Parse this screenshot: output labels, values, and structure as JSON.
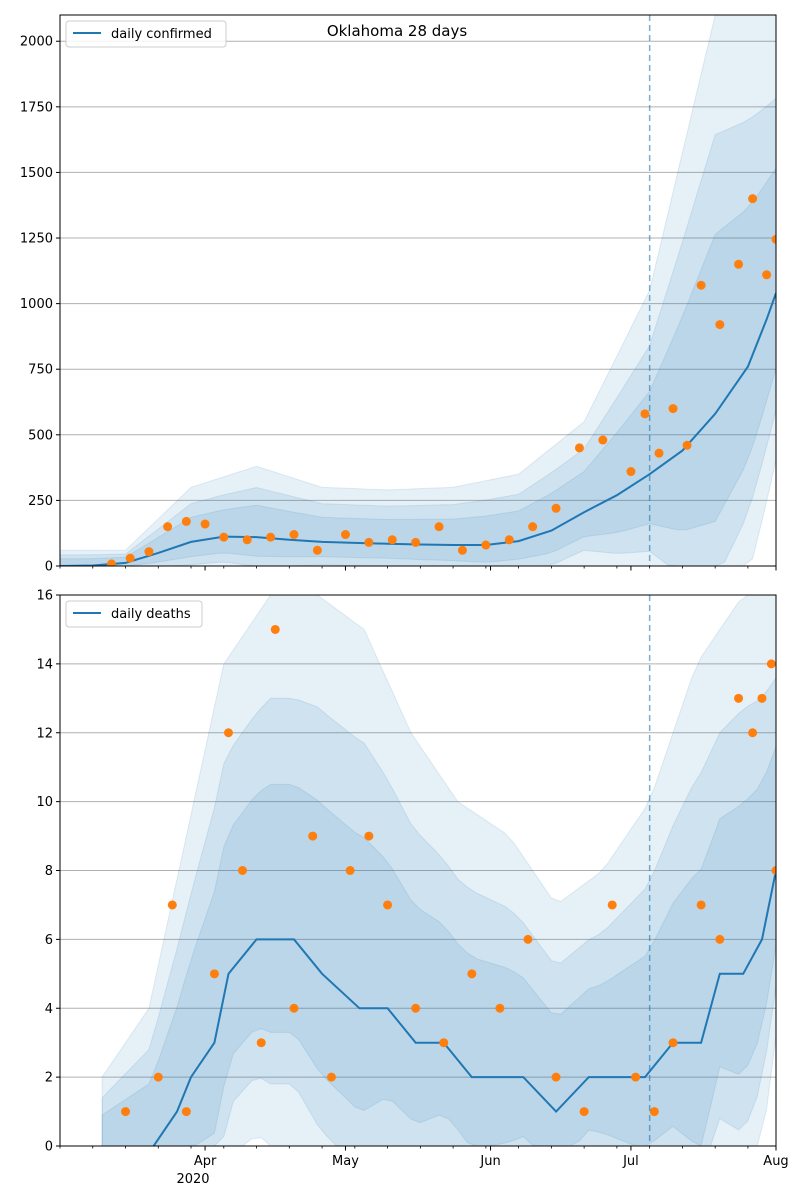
{
  "chart_data": [
    {
      "type": "line",
      "title": "Oklahoma 28 days",
      "xlabel": "",
      "ylabel": "",
      "legend": {
        "label": "daily confirmed",
        "placement": "top-left"
      },
      "xlim": [
        "2020-03-01",
        "2020-08-01"
      ],
      "ylim": [
        0,
        2100
      ],
      "yticks": [
        0,
        250,
        500,
        750,
        1000,
        1250,
        1500,
        1750,
        2000
      ],
      "grid": "horizontal",
      "forecast_start": "2020-07-05",
      "colors": {
        "line": "#1f77b4",
        "observed": "#ff7f0e",
        "band": "#1f77b4"
      },
      "series": [
        {
          "name": "daily confirmed",
          "role": "model fit and 28-day forecast (line)",
          "x": [
            "2020-03-01",
            "2020-03-08",
            "2020-03-15",
            "2020-03-22",
            "2020-03-29",
            "2020-04-05",
            "2020-04-12",
            "2020-04-19",
            "2020-04-26",
            "2020-05-03",
            "2020-05-10",
            "2020-05-17",
            "2020-05-24",
            "2020-05-31",
            "2020-06-07",
            "2020-06-14",
            "2020-06-21",
            "2020-06-28",
            "2020-07-05",
            "2020-07-12",
            "2020-07-19",
            "2020-07-26",
            "2020-07-30",
            "2020-08-01"
          ],
          "y": [
            0,
            2,
            12,
            50,
            92,
            112,
            110,
            100,
            92,
            88,
            85,
            82,
            80,
            80,
            95,
            135,
            205,
            270,
            350,
            440,
            580,
            760,
            940,
            1040
          ]
        },
        {
          "name": "",
          "role": "observed daily values (dots)",
          "x": [
            "2020-03-12",
            "2020-03-16",
            "2020-03-20",
            "2020-03-24",
            "2020-03-28",
            "2020-04-01",
            "2020-04-05",
            "2020-04-10",
            "2020-04-15",
            "2020-04-20",
            "2020-04-25",
            "2020-05-01",
            "2020-05-06",
            "2020-05-11",
            "2020-05-16",
            "2020-05-21",
            "2020-05-26",
            "2020-05-31",
            "2020-06-05",
            "2020-06-10",
            "2020-06-15",
            "2020-06-20",
            "2020-06-25",
            "2020-07-01",
            "2020-07-04",
            "2020-07-07",
            "2020-07-10",
            "2020-07-13",
            "2020-07-16",
            "2020-07-20",
            "2020-07-24",
            "2020-07-27",
            "2020-07-30",
            "2020-08-01"
          ],
          "y": [
            8,
            30,
            55,
            150,
            170,
            160,
            110,
            100,
            110,
            120,
            60,
            120,
            90,
            100,
            90,
            150,
            60,
            80,
            100,
            150,
            220,
            450,
            480,
            360,
            580,
            430,
            600,
            460,
            1070,
            920,
            1150,
            1400,
            1110,
            1245
          ]
        },
        {
          "name": "",
          "role": "outer uncertainty band (upper edge)",
          "x": [
            "2020-03-15",
            "2020-03-29",
            "2020-04-12",
            "2020-04-26",
            "2020-05-10",
            "2020-05-24",
            "2020-06-07",
            "2020-06-21",
            "2020-07-05",
            "2020-07-19",
            "2020-08-01"
          ],
          "y": [
            60,
            300,
            380,
            300,
            290,
            300,
            350,
            550,
            1050,
            2100,
            2100
          ]
        }
      ]
    },
    {
      "type": "line",
      "title": "",
      "xlabel": "",
      "ylabel": "",
      "legend": {
        "label": "daily deaths",
        "placement": "top-left"
      },
      "xlim": [
        "2020-03-01",
        "2020-08-01"
      ],
      "ylim": [
        0,
        16
      ],
      "yticks": [
        0,
        2,
        4,
        6,
        8,
        10,
        12,
        14,
        16
      ],
      "xtick_labels": [
        "Apr",
        "May",
        "Jun",
        "Jul",
        "Aug"
      ],
      "xtick_dates": [
        "2020-04-01",
        "2020-05-01",
        "2020-06-01",
        "2020-07-01",
        "2020-08-01"
      ],
      "x_year_label": "2020",
      "grid": "horizontal",
      "forecast_start": "2020-07-05",
      "colors": {
        "line": "#1f77b4",
        "observed": "#ff7f0e",
        "band": "#1f77b4"
      },
      "series": [
        {
          "name": "daily deaths",
          "role": "model fit and 28-day forecast (line)",
          "x": [
            "2020-03-21",
            "2020-03-26",
            "2020-03-29",
            "2020-04-03",
            "2020-04-06",
            "2020-04-12",
            "2020-04-20",
            "2020-04-26",
            "2020-05-04",
            "2020-05-10",
            "2020-05-16",
            "2020-05-22",
            "2020-05-28",
            "2020-06-04",
            "2020-06-08",
            "2020-06-15",
            "2020-06-22",
            "2020-07-04",
            "2020-07-10",
            "2020-07-16",
            "2020-07-20",
            "2020-07-25",
            "2020-07-29",
            "2020-08-01"
          ],
          "y": [
            0,
            1,
            2,
            3,
            5,
            6,
            6,
            5,
            4,
            4,
            3,
            3,
            2,
            2,
            2,
            1,
            2,
            2,
            3,
            3,
            5,
            5,
            6,
            8
          ]
        },
        {
          "name": "",
          "role": "observed daily values (dots)",
          "x": [
            "2020-03-15",
            "2020-03-22",
            "2020-03-25",
            "2020-03-28",
            "2020-04-03",
            "2020-04-06",
            "2020-04-09",
            "2020-04-13",
            "2020-04-16",
            "2020-04-20",
            "2020-04-24",
            "2020-04-28",
            "2020-05-02",
            "2020-05-06",
            "2020-05-10",
            "2020-05-16",
            "2020-05-22",
            "2020-05-28",
            "2020-06-03",
            "2020-06-09",
            "2020-06-15",
            "2020-06-21",
            "2020-06-27",
            "2020-07-02",
            "2020-07-06",
            "2020-07-10",
            "2020-07-16",
            "2020-07-20",
            "2020-07-24",
            "2020-07-27",
            "2020-07-29",
            "2020-07-31",
            "2020-08-01"
          ],
          "y": [
            1,
            2,
            7,
            1,
            5,
            12,
            8,
            3,
            15,
            4,
            9,
            2,
            8,
            9,
            7,
            4,
            3,
            5,
            4,
            6,
            2,
            1,
            7,
            2,
            1,
            3,
            7,
            6,
            13,
            12,
            13,
            14,
            8
          ]
        },
        {
          "name": "",
          "role": "outer uncertainty band (upper edge)",
          "x": [
            "2020-03-10",
            "2020-03-20",
            "2020-03-28",
            "2020-04-05",
            "2020-04-15",
            "2020-04-25",
            "2020-05-05",
            "2020-05-15",
            "2020-05-25",
            "2020-06-05",
            "2020-06-15",
            "2020-06-25",
            "2020-07-05",
            "2020-07-15",
            "2020-07-25",
            "2020-08-01"
          ],
          "y": [
            2,
            4,
            9,
            14,
            16,
            16,
            15,
            12,
            10,
            9,
            7,
            8,
            10,
            14,
            16,
            16
          ]
        }
      ]
    }
  ]
}
